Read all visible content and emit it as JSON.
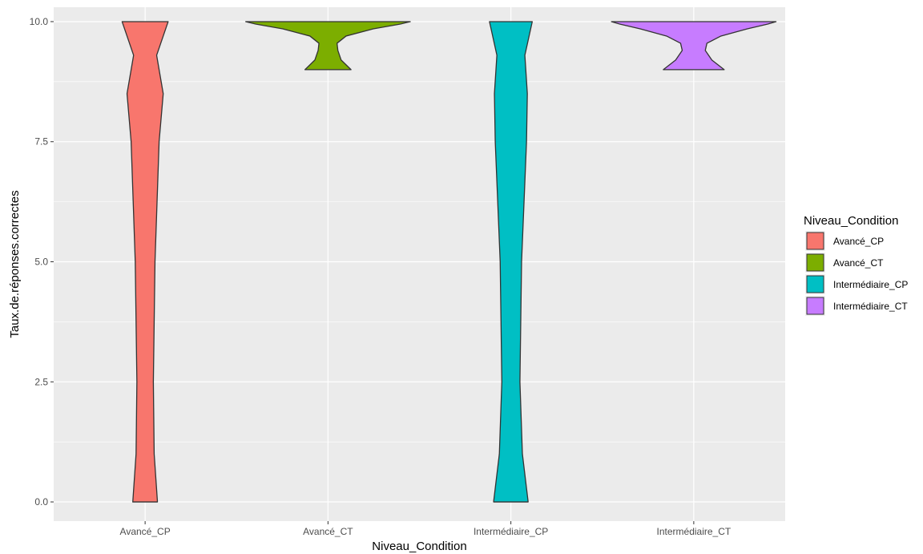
{
  "chart_data": {
    "type": "violin",
    "xlabel": "Niveau_Condition",
    "ylabel": "Taux.de.réponses.correctes",
    "ylim": [
      -0.4,
      10.3
    ],
    "yticks": [
      0.0,
      2.5,
      5.0,
      7.5,
      10.0
    ],
    "ytick_labels": [
      "0.0",
      "2.5",
      "5.0",
      "7.5",
      "10.0"
    ],
    "categories": [
      "Avancé_CP",
      "Avancé_CT",
      "Intermédiaire_CP",
      "Intermédiaire_CT"
    ],
    "grid": true,
    "background": "#ebebeb",
    "legend": {
      "title": "Niveau_Condition",
      "position": "right",
      "entries": [
        "Avancé_CP",
        "Avancé_CT",
        "Intermédiaire_CP",
        "Intermédiaire_CT"
      ]
    },
    "colors": [
      "#f8766d",
      "#7cae00",
      "#00bfc4",
      "#c77cff"
    ],
    "series": [
      {
        "name": "Avancé_CP",
        "y_min": 0.0,
        "y_max": 10.0,
        "density_profile": [
          {
            "y": 0.0,
            "w": 0.15
          },
          {
            "y": 1.0,
            "w": 0.11
          },
          {
            "y": 2.5,
            "w": 0.1
          },
          {
            "y": 5.0,
            "w": 0.12
          },
          {
            "y": 7.5,
            "w": 0.17
          },
          {
            "y": 8.5,
            "w": 0.22
          },
          {
            "y": 9.3,
            "w": 0.14
          },
          {
            "y": 10.0,
            "w": 0.28
          }
        ]
      },
      {
        "name": "Avancé_CT",
        "y_min": 9.0,
        "y_max": 10.0,
        "density_profile": [
          {
            "y": 9.0,
            "w": 0.28
          },
          {
            "y": 9.2,
            "w": 0.16
          },
          {
            "y": 9.4,
            "w": 0.12
          },
          {
            "y": 9.55,
            "w": 0.11
          },
          {
            "y": 9.7,
            "w": 0.22
          },
          {
            "y": 9.85,
            "w": 0.55
          },
          {
            "y": 9.95,
            "w": 0.88
          },
          {
            "y": 10.0,
            "w": 1.0
          }
        ]
      },
      {
        "name": "Intermédiaire_CP",
        "y_min": 0.0,
        "y_max": 10.0,
        "density_profile": [
          {
            "y": 0.0,
            "w": 0.21
          },
          {
            "y": 1.0,
            "w": 0.14
          },
          {
            "y": 2.5,
            "w": 0.11
          },
          {
            "y": 5.0,
            "w": 0.13
          },
          {
            "y": 7.5,
            "w": 0.19
          },
          {
            "y": 8.5,
            "w": 0.2
          },
          {
            "y": 9.3,
            "w": 0.17
          },
          {
            "y": 10.0,
            "w": 0.26
          }
        ]
      },
      {
        "name": "Intermédiaire_CT",
        "y_min": 9.0,
        "y_max": 10.0,
        "density_profile": [
          {
            "y": 9.0,
            "w": 0.37
          },
          {
            "y": 9.2,
            "w": 0.22
          },
          {
            "y": 9.4,
            "w": 0.14
          },
          {
            "y": 9.55,
            "w": 0.16
          },
          {
            "y": 9.7,
            "w": 0.33
          },
          {
            "y": 9.85,
            "w": 0.65
          },
          {
            "y": 9.95,
            "w": 0.9
          },
          {
            "y": 10.0,
            "w": 1.0
          }
        ]
      }
    ]
  }
}
